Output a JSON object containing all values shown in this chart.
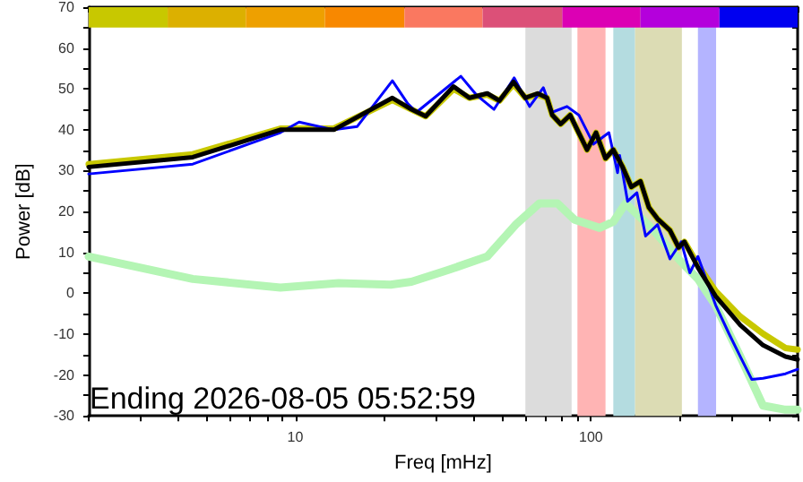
{
  "chart_data": {
    "type": "line",
    "xlabel": "Freq [mHz]",
    "ylabel": "Power [dB]",
    "log": "x",
    "grid": false,
    "xlim": [
      2,
      500
    ],
    "ylim": [
      -30,
      70
    ],
    "xticks": [
      {
        "value": 2,
        "label": null
      },
      {
        "value": 3,
        "label": null
      },
      {
        "value": 4,
        "label": null
      },
      {
        "value": 5,
        "label": null
      },
      {
        "value": 6,
        "label": null
      },
      {
        "value": 7,
        "label": null
      },
      {
        "value": 8,
        "label": null
      },
      {
        "value": 9,
        "label": null
      },
      10,
      {
        "value": 20,
        "label": null
      },
      {
        "value": 30,
        "label": null
      },
      {
        "value": 40,
        "label": null
      },
      {
        "value": 50,
        "label": null
      },
      {
        "value": 60,
        "label": null
      },
      {
        "value": 70,
        "label": null
      },
      {
        "value": 80,
        "label": null
      },
      {
        "value": 90,
        "label": null
      },
      100,
      {
        "value": 200,
        "label": null
      },
      {
        "value": 300,
        "label": null
      },
      {
        "value": 400,
        "label": null
      },
      {
        "value": 500,
        "label": null
      }
    ],
    "yticks": [
      -30,
      {
        "value": -25,
        "label": null
      },
      -20,
      {
        "value": -15,
        "label": null
      },
      -10,
      {
        "value": -5,
        "label": null
      },
      0,
      {
        "value": 5,
        "label": null
      },
      10,
      {
        "value": 15,
        "label": null
      },
      20,
      {
        "value": 25,
        "label": null
      },
      30,
      {
        "value": 35,
        "label": null
      },
      40,
      {
        "value": 45,
        "label": null
      },
      50,
      {
        "value": 55,
        "label": null
      },
      60,
      {
        "value": 65,
        "label": null
      },
      70
    ],
    "bands": [
      {
        "axis": "x",
        "from": 60,
        "to": 86,
        "color": "#dcdcdc"
      },
      {
        "axis": "x",
        "from": 90,
        "to": 112,
        "color": "#ffb4b4"
      },
      {
        "axis": "x",
        "from": 119,
        "to": 141,
        "color": "#b4dce0"
      },
      {
        "axis": "x",
        "from": 141,
        "to": 203,
        "color": "#dcdcb4"
      },
      {
        "axis": "x",
        "from": 230,
        "to": 265,
        "color": "#b4b4ff"
      }
    ],
    "annotations": [
      "Ending 2026-08-05 05:52:59"
    ],
    "series": [
      {
        "type": "histogram",
        "bins": [
          2,
          3.7,
          6.8,
          12.6,
          23.4,
          43,
          80,
          147,
          272,
          500
        ],
        "values": [
          5,
          5,
          5,
          5,
          5,
          5,
          5,
          5,
          5
        ],
        "base": [
          65,
          65,
          65,
          65,
          65,
          65,
          65,
          65,
          65
        ],
        "colors": [
          "#c8c800",
          "#dcb000",
          "#eea000",
          "#f88800",
          "#fa7860",
          "#dc5078",
          "#dc00b4",
          "#b400dc",
          "#0000f0"
        ]
      },
      {
        "color": "#b4f5b4",
        "x": [
          2,
          4.5,
          8.9,
          14,
          21,
          24.7,
          32.6,
          44.6,
          56,
          67,
          77,
          88,
          107,
          119,
          131,
          160,
          200,
          230,
          264,
          320,
          382,
          455,
          500
        ],
        "values": [
          9,
          3.5,
          1.4,
          2.5,
          2.1,
          2.8,
          5.6,
          9,
          17,
          22,
          22,
          18,
          16,
          17.5,
          22,
          16,
          8,
          3.5,
          -3,
          -15.5,
          -27.5,
          -28.5,
          -28.5
        ]
      },
      {
        "color": "#c8c800",
        "x": [
          2,
          4.5,
          8.9,
          13.5,
          21.3,
          24.7,
          27.6,
          34.3,
          38.8,
          44.6,
          49,
          54.7,
          60,
          66,
          71,
          74,
          79,
          85,
          97,
          104,
          112,
          119,
          128,
          137,
          147,
          157,
          168,
          185,
          198,
          207,
          230,
          264,
          320,
          382,
          455,
          500
        ],
        "values": [
          31.6,
          34,
          40.3,
          40.3,
          47.3,
          45,
          43.3,
          50,
          47.8,
          48.6,
          47.1,
          51.2,
          47.8,
          48.6,
          47.8,
          43.6,
          41.4,
          43.6,
          35.1,
          39.3,
          33,
          35.1,
          30.9,
          26,
          27.4,
          21,
          18.2,
          15.4,
          11.2,
          12.6,
          7,
          0.5,
          -5.7,
          -9.9,
          -13.4,
          -13.8
        ]
      },
      {
        "color": "#0000ff",
        "x": [
          2,
          4.5,
          8.9,
          10.3,
          13.5,
          16.2,
          21.3,
          24,
          25.7,
          29.5,
          36.3,
          41,
          47,
          55,
          62,
          69,
          74,
          83,
          91,
          102,
          115,
          123,
          125,
          133,
          143,
          153,
          168,
          185,
          202,
          216,
          230,
          264,
          293,
          320,
          350,
          382,
          455,
          500
        ],
        "values": [
          29.2,
          31.6,
          39.3,
          41.9,
          40,
          40.8,
          52,
          46.4,
          44.3,
          47.8,
          53.1,
          48.5,
          45,
          52.7,
          45.7,
          50.3,
          44.3,
          45.7,
          43.6,
          36.5,
          39.3,
          29.5,
          33.7,
          22.5,
          24.6,
          14,
          16.8,
          8.4,
          12.6,
          5,
          9,
          -2.9,
          -9.9,
          -15.5,
          -21.1,
          -20.8,
          -19.7,
          -18.6
        ]
      },
      {
        "color": "#000000",
        "x": [
          2,
          4.5,
          8.9,
          13.5,
          21.3,
          24.7,
          27.6,
          34.3,
          38.8,
          44.6,
          49,
          54.7,
          60,
          66,
          71,
          74,
          79,
          85,
          97,
          104,
          112,
          119,
          128,
          137,
          147,
          157,
          168,
          185,
          198,
          207,
          230,
          264,
          320,
          382,
          455,
          500
        ],
        "values": [
          30.9,
          33.3,
          40,
          40,
          47.8,
          45,
          43.3,
          50.6,
          47.8,
          48.9,
          47.1,
          51.7,
          47.8,
          48.9,
          47.8,
          43.6,
          41.4,
          43.6,
          35.1,
          39.3,
          33,
          35.1,
          30.9,
          26,
          27.4,
          21,
          18.2,
          15.4,
          11.2,
          12.6,
          6.3,
          -0.7,
          -7.8,
          -12.7,
          -15.5,
          -16.2
        ]
      }
    ]
  }
}
